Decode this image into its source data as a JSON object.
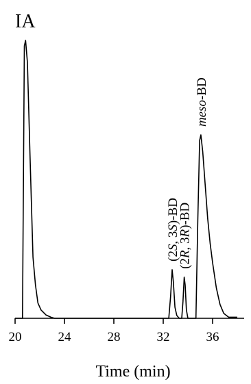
{
  "panel_label": "IA",
  "chart_data": {
    "type": "line",
    "title": "",
    "xlabel": "Time (min)",
    "ylabel": "",
    "xlim": [
      20,
      38
    ],
    "ylim": [
      0,
      1.0
    ],
    "x_ticks": [
      20,
      24,
      28,
      32,
      36
    ],
    "x_tick_labels": [
      "20",
      "24",
      "28",
      "32",
      "36"
    ],
    "grid": false,
    "legend": "none",
    "series": [
      {
        "color": "#000000",
        "x": [
          20.0,
          20.6,
          20.75,
          20.85,
          21.0,
          21.2,
          21.45,
          21.65,
          21.85,
          22.1,
          22.5,
          22.9,
          23.2,
          24.0,
          28.0,
          32.0,
          32.45,
          32.6,
          32.72,
          32.82,
          32.95,
          33.1,
          33.3,
          33.5,
          33.6,
          33.7,
          33.78,
          33.88,
          34.0,
          34.3,
          34.65,
          34.8,
          34.95,
          35.05,
          35.2,
          35.4,
          35.6,
          35.8,
          36.0,
          36.3,
          36.6,
          36.9,
          37.3,
          38.0
        ],
        "y": [
          0.0,
          0.0,
          0.98,
          1.0,
          0.92,
          0.6,
          0.22,
          0.12,
          0.055,
          0.03,
          0.012,
          0.004,
          0.0,
          0.0,
          0.0,
          0.0,
          0.0,
          0.08,
          0.175,
          0.13,
          0.04,
          0.01,
          0.0,
          0.0,
          0.06,
          0.148,
          0.12,
          0.03,
          0.0,
          0.0,
          0.0,
          0.35,
          0.64,
          0.66,
          0.6,
          0.48,
          0.36,
          0.27,
          0.2,
          0.11,
          0.05,
          0.018,
          0.004,
          0.004
        ]
      }
    ],
    "annotations": [
      {
        "id": "ss",
        "pre": "(2",
        "a": "S",
        "mid": ", 3",
        "b": "S",
        "post": ")-BD",
        "x": 32.72,
        "y": 0.175
      },
      {
        "id": "rr",
        "pre": "(2",
        "a": "R",
        "mid": ", 3",
        "b": "R",
        "post": ")-BD",
        "x": 33.7,
        "y": 0.148
      },
      {
        "id": "meso",
        "italic": "meso",
        "post": "-BD",
        "x": 35.05,
        "y": 0.66
      }
    ]
  }
}
